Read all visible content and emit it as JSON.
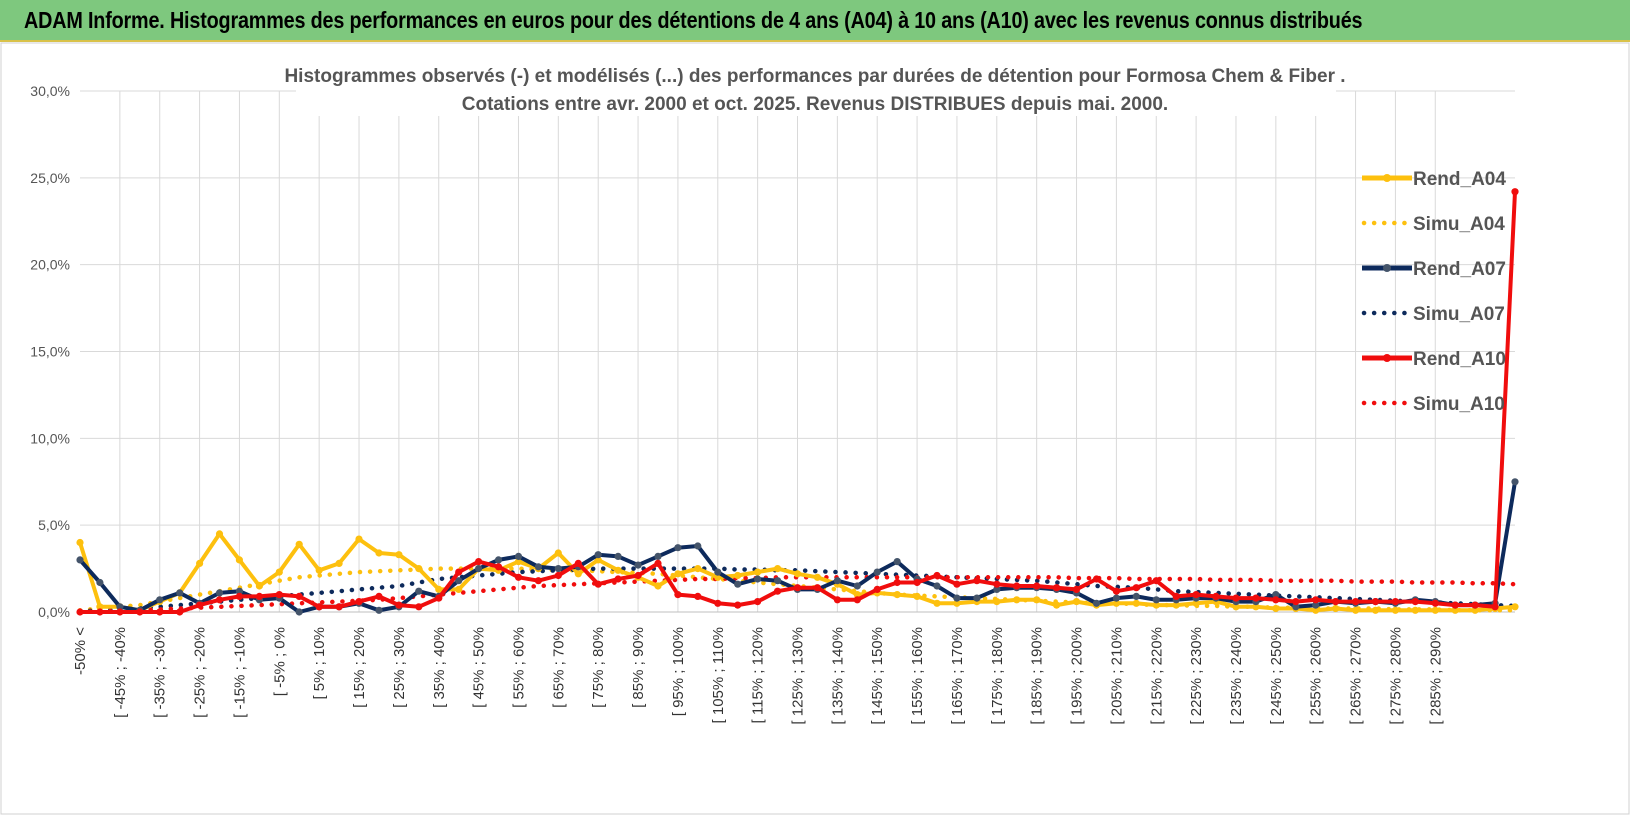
{
  "banner": {
    "title": "ADAM Informe. Histogrammes des performances en euros pour des détentions de 4 ans (A04) à 10 ans (A10) avec les revenus connus distribués"
  },
  "colors": {
    "banner_bg": "#7ec87e",
    "A04": "#fdc00e",
    "A07": "#0d2a5c",
    "A10": "#f00d0d",
    "grid": "#d9d9d9"
  },
  "chart_data": {
    "type": "line",
    "title": "Histogrammes observés (-) et modélisés (...) des performances par durées de détention pour Formosa Chem & Fiber .",
    "subtitle": "Cotations entre avr. 2000 et oct. 2025.  Revenus DISTRIBUES depuis mai. 2000.",
    "xlabel": "",
    "ylabel": "",
    "ylim": [
      0,
      30
    ],
    "yticks": [
      "0,0%",
      "5,0%",
      "10,0%",
      "15,0%",
      "20,0%",
      "25,0%",
      "30,0%"
    ],
    "grid": true,
    "legend_position": "right",
    "x_labels_shown": [
      "-50% <",
      "[ -45% ; -40%",
      "[ -35% ; -30%",
      "[ -25% ; -20%",
      "[ -15% ; -10%",
      "[ -5% ; 0%",
      "[ 5% ; 10%",
      "[ 15% ; 20%",
      "[ 25% ; 30%",
      "[ 35% ; 40%",
      "[ 45% ; 50%",
      "[ 55% ; 60%",
      "[ 65% ; 70%",
      "[ 75% ; 80%",
      "[ 85% ; 90%",
      "[ 95% ; 100%",
      "[ 105% ; 110%",
      "[ 115% ; 120%",
      "[ 125% ; 130%",
      "[ 135% ; 140%",
      "[ 145% ; 150%",
      "[ 155% ; 160%",
      "[ 165% ; 170%",
      "[ 175% ; 180%",
      "[ 185% ; 190%",
      "[ 195% ; 200%",
      "[ 205% ; 210%",
      "[ 215% ; 220%",
      "[ 225% ; 230%",
      "[ 235% ; 240%",
      "[ 245% ; 250%",
      "[ 255% ; 260%",
      "[ 265% ; 270%",
      "[ 275% ; 280%",
      "[ 285% ; 290%"
    ],
    "series": [
      {
        "name": "Rend_A04",
        "style": "solid",
        "color": "#fdc00e",
        "values": [
          4.0,
          0.3,
          0.3,
          0.1,
          0.6,
          1.1,
          2.8,
          4.5,
          3.0,
          1.5,
          2.3,
          3.9,
          2.4,
          2.8,
          4.2,
          3.4,
          3.3,
          2.5,
          1.3,
          1.3,
          2.5,
          2.4,
          2.9,
          2.5,
          3.4,
          2.2,
          3.0,
          2.4,
          2.0,
          1.5,
          2.2,
          2.5,
          2.0,
          2.1,
          2.3,
          2.5,
          2.2,
          2.0,
          1.6,
          1.0,
          1.1,
          1.0,
          0.9,
          0.5,
          0.5,
          0.6,
          0.6,
          0.7,
          0.7,
          0.4,
          0.6,
          0.4,
          0.5,
          0.5,
          0.4,
          0.4,
          0.5,
          0.6,
          0.3,
          0.3,
          0.2,
          0.2,
          0.1,
          0.2,
          0.1,
          0.1,
          0.1,
          0.1,
          0.1,
          0.1,
          0.1,
          0.2,
          0.3
        ]
      },
      {
        "name": "Simu_A04",
        "style": "dotted",
        "color": "#fdc00e",
        "values": [
          0.1,
          0.2,
          0.3,
          0.4,
          0.6,
          0.8,
          1.0,
          1.2,
          1.4,
          1.6,
          1.8,
          2.0,
          2.1,
          2.2,
          2.3,
          2.35,
          2.4,
          2.45,
          2.5,
          2.5,
          2.5,
          2.5,
          2.5,
          2.45,
          2.4,
          2.4,
          2.35,
          2.3,
          2.25,
          2.2,
          2.1,
          2.0,
          1.9,
          1.8,
          1.7,
          1.6,
          1.5,
          1.4,
          1.3,
          1.2,
          1.1,
          1.0,
          0.95,
          0.9,
          0.85,
          0.8,
          0.75,
          0.7,
          0.65,
          0.6,
          0.55,
          0.5,
          0.5,
          0.45,
          0.4,
          0.4,
          0.35,
          0.35,
          0.3,
          0.3,
          0.25,
          0.25,
          0.2,
          0.2,
          0.2,
          0.2,
          0.15,
          0.15,
          0.15,
          0.1,
          0.1,
          0.1,
          0.1
        ]
      },
      {
        "name": "Rend_A07",
        "style": "solid",
        "color": "#0d2a5c",
        "values": [
          3.0,
          1.7,
          0.3,
          0.1,
          0.7,
          1.1,
          0.5,
          1.1,
          1.2,
          0.7,
          0.8,
          0.0,
          0.3,
          0.3,
          0.5,
          0.1,
          0.3,
          1.2,
          0.9,
          1.8,
          2.5,
          3.0,
          3.2,
          2.6,
          2.5,
          2.6,
          3.3,
          3.2,
          2.7,
          3.2,
          3.7,
          3.8,
          2.3,
          1.6,
          1.9,
          1.8,
          1.3,
          1.3,
          1.8,
          1.5,
          2.3,
          2.9,
          1.9,
          1.5,
          0.8,
          0.8,
          1.3,
          1.4,
          1.4,
          1.3,
          1.1,
          0.5,
          0.8,
          0.9,
          0.7,
          0.7,
          0.8,
          0.8,
          0.6,
          0.6,
          1.0,
          0.3,
          0.4,
          0.6,
          0.5,
          0.6,
          0.5,
          0.7,
          0.6,
          0.4,
          0.4,
          0.5,
          7.5
        ]
      },
      {
        "name": "Simu_A07",
        "style": "dotted",
        "color": "#0d2a5c",
        "values": [
          0.05,
          0.1,
          0.15,
          0.2,
          0.3,
          0.4,
          0.5,
          0.6,
          0.7,
          0.8,
          0.9,
          1.0,
          1.1,
          1.2,
          1.3,
          1.4,
          1.5,
          1.7,
          1.9,
          2.0,
          2.1,
          2.2,
          2.3,
          2.35,
          2.4,
          2.45,
          2.5,
          2.5,
          2.5,
          2.5,
          2.5,
          2.5,
          2.5,
          2.45,
          2.45,
          2.4,
          2.4,
          2.35,
          2.3,
          2.25,
          2.2,
          2.15,
          2.1,
          2.05,
          2.0,
          1.95,
          1.9,
          1.85,
          1.8,
          1.7,
          1.6,
          1.5,
          1.45,
          1.4,
          1.3,
          1.2,
          1.15,
          1.1,
          1.05,
          1.0,
          0.95,
          0.9,
          0.85,
          0.8,
          0.75,
          0.7,
          0.65,
          0.6,
          0.55,
          0.5,
          0.45,
          0.4,
          0.35
        ]
      },
      {
        "name": "Rend_A10",
        "style": "solid",
        "color": "#f00d0d",
        "values": [
          0.0,
          0.0,
          0.0,
          0.0,
          0.0,
          0.0,
          0.4,
          0.7,
          0.9,
          0.9,
          1.0,
          0.9,
          0.3,
          0.3,
          0.6,
          0.9,
          0.4,
          0.3,
          0.8,
          2.3,
          2.9,
          2.6,
          2.0,
          1.8,
          2.1,
          2.8,
          1.6,
          1.9,
          2.1,
          2.8,
          1.0,
          0.9,
          0.5,
          0.4,
          0.6,
          1.2,
          1.4,
          1.4,
          0.7,
          0.7,
          1.3,
          1.7,
          1.7,
          2.1,
          1.6,
          1.8,
          1.6,
          1.5,
          1.5,
          1.4,
          1.3,
          1.9,
          1.2,
          1.4,
          1.8,
          0.9,
          1.0,
          0.9,
          0.8,
          0.8,
          0.7,
          0.6,
          0.7,
          0.6,
          0.6,
          0.6,
          0.6,
          0.6,
          0.5,
          0.4,
          0.4,
          0.3,
          24.2
        ]
      },
      {
        "name": "Simu_A10",
        "style": "dotted",
        "color": "#f00d0d",
        "values": [
          0.0,
          0.05,
          0.05,
          0.1,
          0.15,
          0.2,
          0.25,
          0.3,
          0.35,
          0.4,
          0.45,
          0.5,
          0.55,
          0.6,
          0.65,
          0.7,
          0.8,
          0.9,
          1.0,
          1.1,
          1.2,
          1.3,
          1.4,
          1.5,
          1.55,
          1.6,
          1.65,
          1.7,
          1.75,
          1.8,
          1.85,
          1.9,
          1.9,
          1.95,
          1.95,
          2.0,
          2.0,
          2.0,
          2.0,
          2.0,
          2.0,
          2.0,
          2.0,
          2.0,
          2.0,
          2.0,
          2.0,
          2.0,
          2.0,
          2.0,
          1.95,
          1.95,
          1.95,
          1.9,
          1.9,
          1.9,
          1.9,
          1.85,
          1.85,
          1.85,
          1.8,
          1.8,
          1.8,
          1.8,
          1.75,
          1.75,
          1.75,
          1.7,
          1.7,
          1.7,
          1.65,
          1.65,
          1.6
        ]
      }
    ]
  }
}
